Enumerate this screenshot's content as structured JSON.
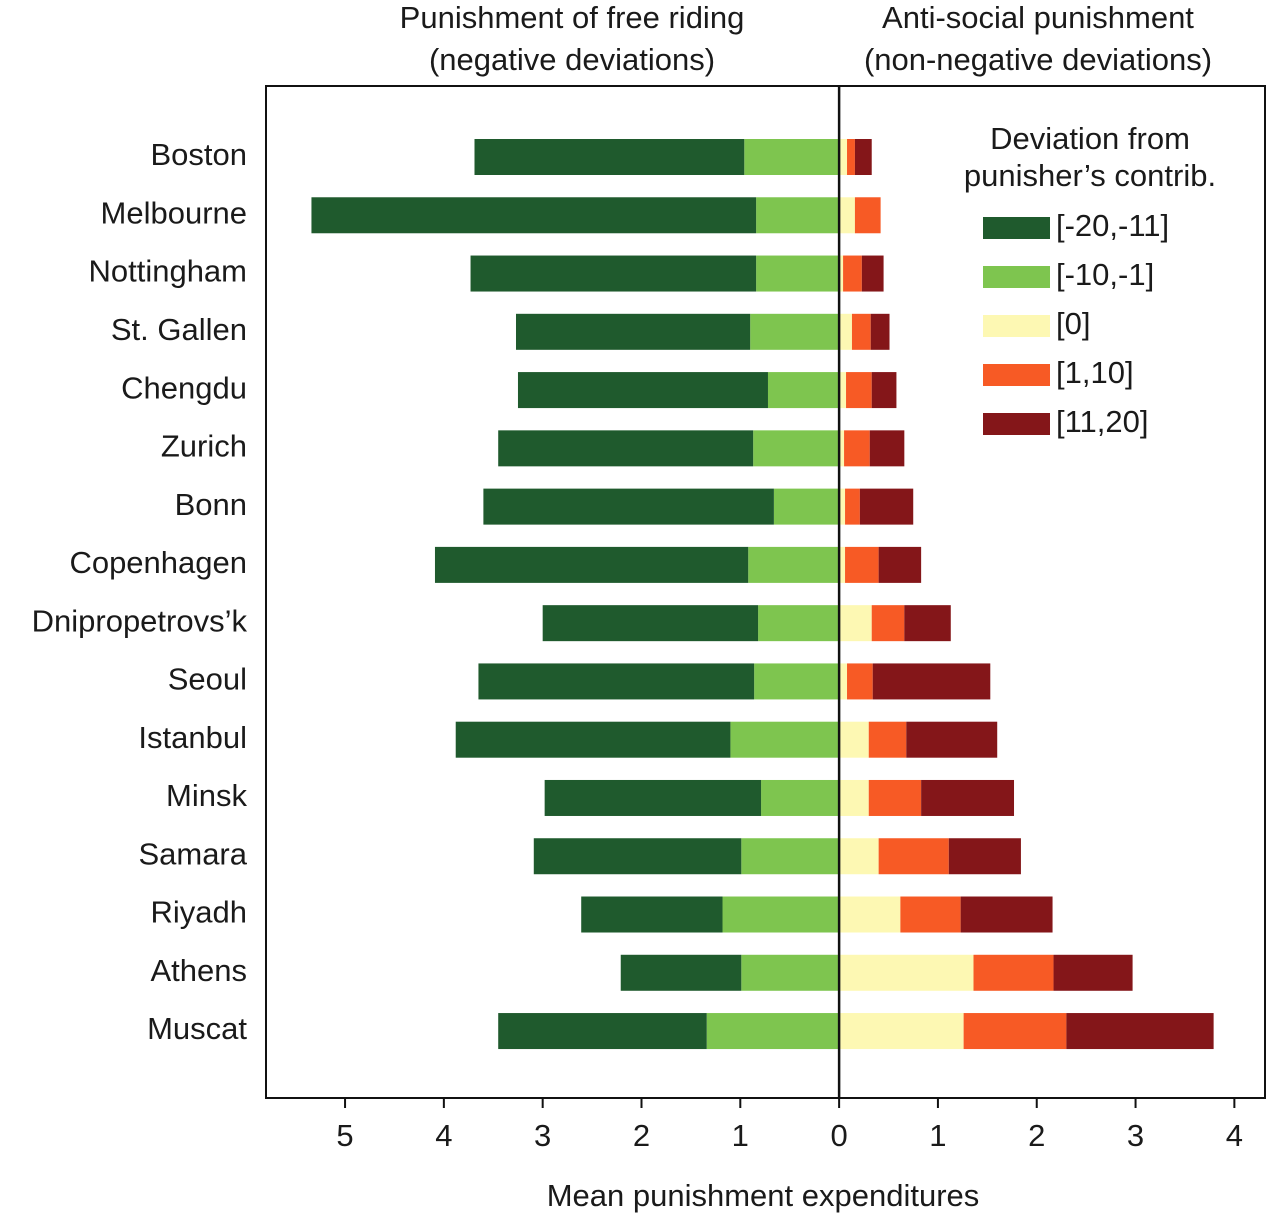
{
  "chart_data": {
    "type": "bar",
    "orientation": "horizontal",
    "stacked": true,
    "title_left": [
      "Punishment of free riding",
      "(negative deviations)"
    ],
    "title_right": [
      "Anti-social punishment",
      "(non-negative deviations)"
    ],
    "xlabel": "Mean punishment expenditures",
    "legend_title": [
      "Deviation from",
      "punisher’s contrib."
    ],
    "legend": "upper right",
    "xlim": [
      -5.8,
      4.31
    ],
    "xticks": [
      {
        "value": -5,
        "label": "5"
      },
      {
        "value": -4,
        "label": "4"
      },
      {
        "value": -3,
        "label": "3"
      },
      {
        "value": -2,
        "label": "2"
      },
      {
        "value": -1,
        "label": "1"
      },
      0,
      1,
      2,
      3,
      4
    ],
    "categories": [
      "Boston",
      "Melbourne",
      "Nottingham",
      "St. Gallen",
      "Chengdu",
      "Zurich",
      "Bonn",
      "Copenhagen",
      "Dnipropetrovs’k",
      "Seoul",
      "Istanbul",
      "Minsk",
      "Samara",
      "Riyadh",
      "Athens",
      "Muscat"
    ],
    "series": [
      {
        "name": "[-20,-11]",
        "color": "#1f5a2d",
        "values": [
          -2.73,
          -4.5,
          -2.89,
          -2.37,
          -2.53,
          -2.58,
          -2.94,
          -3.17,
          -2.18,
          -2.79,
          -2.78,
          -2.19,
          -2.1,
          -1.43,
          -1.22,
          -2.11
        ]
      },
      {
        "name": "[-10,-1]",
        "color": "#7ec54f",
        "values": [
          -0.96,
          -0.84,
          -0.84,
          -0.9,
          -0.72,
          -0.87,
          -0.66,
          -0.92,
          -0.82,
          -0.86,
          -1.1,
          -0.79,
          -0.99,
          -1.18,
          -0.99,
          -1.34
        ]
      },
      {
        "name": "[0]",
        "color": "#fdf8b3",
        "values": [
          0.08,
          0.16,
          0.04,
          0.13,
          0.07,
          0.05,
          0.06,
          0.06,
          0.33,
          0.08,
          0.3,
          0.3,
          0.4,
          0.62,
          1.36,
          1.26
        ]
      },
      {
        "name": "[1,10]",
        "color": "#f75a25",
        "values": [
          0.08,
          0.26,
          0.19,
          0.19,
          0.26,
          0.26,
          0.15,
          0.34,
          0.33,
          0.26,
          0.38,
          0.53,
          0.71,
          0.61,
          0.81,
          1.04
        ]
      },
      {
        "name": "[11,20]",
        "color": "#841619",
        "values": [
          0.17,
          0,
          0.22,
          0.19,
          0.25,
          0.35,
          0.54,
          0.43,
          0.47,
          1.19,
          0.92,
          0.94,
          0.73,
          0.93,
          0.8,
          1.49
        ]
      }
    ]
  }
}
